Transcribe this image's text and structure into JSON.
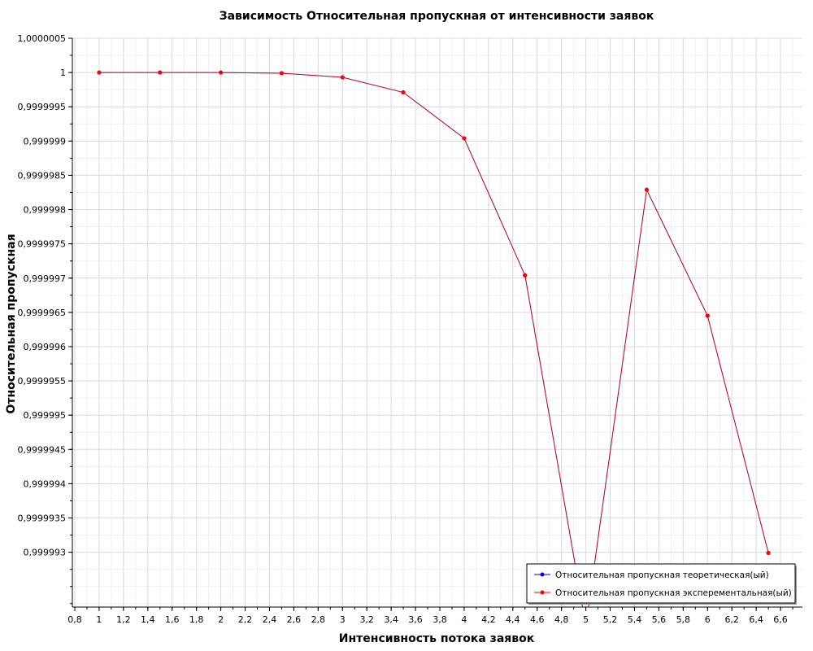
{
  "chart_data": {
    "type": "line",
    "title": "Зависимость Относительная пропускная от интенсивности заявок",
    "xlabel": "Интенсивность потока заявок",
    "ylabel": "Относительная пропускная",
    "xlim": [
      0.78,
      6.78
    ],
    "ylim": [
      0.9999922,
      1.0000005
    ],
    "x_ticks": [
      "0,8",
      "1",
      "1,2",
      "1,4",
      "1,6",
      "1,8",
      "2",
      "2,2",
      "2,4",
      "2,6",
      "2,8",
      "3",
      "3,2",
      "3,4",
      "3,6",
      "3,8",
      "4",
      "4,2",
      "4,4",
      "4,6",
      "4,8",
      "5",
      "5,2",
      "5,4",
      "5,6",
      "5,8",
      "6",
      "6,2",
      "6,4",
      "6,6"
    ],
    "x_tick_values": [
      0.8,
      1,
      1.2,
      1.4,
      1.6,
      1.8,
      2,
      2.2,
      2.4,
      2.6,
      2.8,
      3,
      3.2,
      3.4,
      3.6,
      3.8,
      4,
      4.2,
      4.4,
      4.6,
      4.8,
      5,
      5.2,
      5.4,
      5.6,
      5.8,
      6,
      6.2,
      6.4,
      6.6
    ],
    "y_ticks": [
      "1,0000005",
      "1",
      "0,9999995",
      "0,999999",
      "0,9999985",
      "0,999998",
      "0,9999975",
      "0,999997",
      "0,9999965",
      "0,999996",
      "0,9999955",
      "0,999995",
      "0,9999945",
      "0,999994",
      "0,9999935",
      "0,999993"
    ],
    "y_tick_values": [
      1.0000005,
      1.0,
      0.9999995,
      0.999999,
      0.9999985,
      0.999998,
      0.9999975,
      0.999997,
      0.9999965,
      0.999996,
      0.9999955,
      0.999995,
      0.9999945,
      0.999994,
      0.9999935,
      0.999993
    ],
    "grid": true,
    "legend_position": "bottom-right",
    "series": [
      {
        "name": "Относительная пропускная теоретическая(ый)",
        "color": "#0000ff",
        "x": [
          1,
          1.5,
          2,
          2.5,
          3,
          3.5,
          4,
          4.5,
          5,
          5.5,
          6,
          6.5
        ],
        "y": [
          1.0,
          1.0,
          1.0,
          0.99999999,
          0.99999993,
          0.99999971,
          0.99999904,
          0.99999704,
          0.99999192,
          0.99999829,
          0.99999645,
          0.99999299
        ]
      },
      {
        "name": "Относительная пропускная эксперементальная(ый)",
        "color": "#ff0000",
        "x": [
          1,
          1.5,
          2,
          2.5,
          3,
          3.5,
          4,
          4.5,
          5,
          5.5,
          6,
          6.5
        ],
        "y": [
          1.0,
          1.0,
          1.0,
          0.99999999,
          0.99999993,
          0.99999971,
          0.99999904,
          0.99999704,
          0.99999192,
          0.99999829,
          0.99999645,
          0.99999299
        ]
      }
    ]
  }
}
